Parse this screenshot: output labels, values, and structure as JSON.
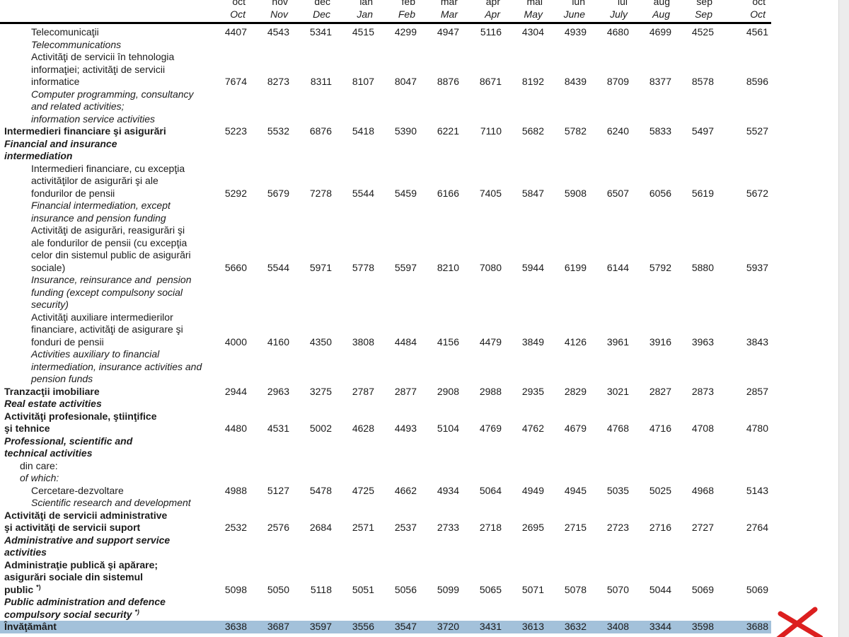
{
  "colors": {
    "highlight": "#a3c1da",
    "red_x": "#dc1f1f",
    "scroll_track": "#ececec",
    "scroll_border": "#d8d8d8"
  },
  "annotations": {
    "red_x": {
      "description": "hand-drawn red X mark over last value of highlighted row"
    }
  },
  "table": {
    "header": {
      "months_ro": [
        "oct",
        "nov",
        "dec",
        "ian",
        "feb",
        "mar",
        "apr",
        "mai",
        "iun",
        "iul",
        "aug",
        "sep",
        "oct"
      ],
      "months_en": [
        "Oct",
        "Nov",
        "Dec",
        "Jan",
        "Feb",
        "Mar",
        "Apr",
        "May",
        "June",
        "July",
        "Aug",
        "Sep",
        "Oct"
      ]
    },
    "rows": [
      {
        "name": "telecomunicatii",
        "indent": 1,
        "value_line": 0,
        "label_lines": [
          {
            "text": "Telecomunicaţii",
            "style": "normal"
          },
          {
            "text": "Telecommunications",
            "style": "italic"
          }
        ],
        "values": [
          4407,
          4543,
          5341,
          4515,
          4299,
          4947,
          5116,
          4304,
          4939,
          4680,
          4699,
          4525,
          4561
        ]
      },
      {
        "name": "it-services",
        "indent": 1,
        "value_line": 2,
        "label_lines": [
          {
            "text": "Activităţi de servicii în tehnologia",
            "style": "normal"
          },
          {
            "text": "informaţiei; activităţi de servicii",
            "style": "normal"
          },
          {
            "text": "informatice",
            "style": "normal"
          },
          {
            "text": "Computer programming, consultancy",
            "style": "italic"
          },
          {
            "text": "and related activities;",
            "style": "italic"
          },
          {
            "text": "information service activities",
            "style": "italic"
          }
        ],
        "values": [
          7674,
          8273,
          8311,
          8107,
          8047,
          8876,
          8671,
          8192,
          8439,
          8709,
          8377,
          8578,
          8596
        ]
      },
      {
        "name": "financial-insurance",
        "indent": 0,
        "value_line": 0,
        "label_lines": [
          {
            "text": "Intermedieri financiare şi asigurări",
            "style": "bold"
          },
          {
            "text": "Financial and insurance",
            "style": "bolditalic"
          },
          {
            "text": "intermediation",
            "style": "bolditalic"
          }
        ],
        "values": [
          5223,
          5532,
          6876,
          5418,
          5390,
          6221,
          7110,
          5682,
          5782,
          6240,
          5833,
          5497,
          5527
        ]
      },
      {
        "name": "financial-intermediation",
        "indent": 1,
        "value_line": 2,
        "label_lines": [
          {
            "text": "Intermedieri financiare, cu excepţia",
            "style": "normal"
          },
          {
            "text": "activităţilor de asigurări şi ale",
            "style": "normal"
          },
          {
            "text": "fondurilor de pensii",
            "style": "normal"
          },
          {
            "text": "Financial intermediation, except",
            "style": "italic"
          },
          {
            "text": "insurance and pension funding",
            "style": "italic"
          }
        ],
        "values": [
          5292,
          5679,
          7278,
          5544,
          5459,
          6166,
          7405,
          5847,
          5908,
          6507,
          6056,
          5619,
          5672
        ]
      },
      {
        "name": "insurance-reinsurance",
        "indent": 1,
        "value_line": 3,
        "label_lines": [
          {
            "text": "Activităţi de asigurări, reasigurări şi",
            "style": "normal"
          },
          {
            "text": "ale fondurilor de pensii (cu excepţia",
            "style": "normal"
          },
          {
            "text": "celor din sistemul public de asigurări",
            "style": "normal"
          },
          {
            "text": "sociale)",
            "style": "normal"
          },
          {
            "text": "Insurance, reinsurance and  pension",
            "style": "italic"
          },
          {
            "text": "funding (except compulsony social",
            "style": "italic"
          },
          {
            "text": "security)",
            "style": "italic"
          }
        ],
        "values": [
          5660,
          5544,
          5971,
          5778,
          5597,
          8210,
          7080,
          5944,
          6199,
          6144,
          5792,
          5880,
          5937
        ]
      },
      {
        "name": "auxiliary-financial",
        "indent": 1,
        "value_line": 2,
        "label_lines": [
          {
            "text": "Activităţi auxiliare intermedierilor",
            "style": "normal"
          },
          {
            "text": "financiare, activităţi de asigurare şi",
            "style": "normal"
          },
          {
            "text": "fonduri de pensii",
            "style": "normal"
          },
          {
            "text": "Activities auxiliary to financial",
            "style": "italic"
          },
          {
            "text": "intermediation, insurance activities and",
            "style": "italic"
          },
          {
            "text": "pension funds",
            "style": "italic"
          }
        ],
        "values": [
          4000,
          4160,
          4350,
          3808,
          4484,
          4156,
          4479,
          3849,
          4126,
          3961,
          3916,
          3963,
          3843
        ]
      },
      {
        "name": "real-estate",
        "indent": 0,
        "value_line": 0,
        "label_lines": [
          {
            "text": "Tranzacţii imobiliare",
            "style": "bold"
          },
          {
            "text": "Real estate activities",
            "style": "bolditalic"
          }
        ],
        "values": [
          2944,
          2963,
          3275,
          2787,
          2877,
          2908,
          2988,
          2935,
          2829,
          3021,
          2827,
          2873,
          2857
        ]
      },
      {
        "name": "professional-scientific",
        "indent": 0,
        "value_line": 1,
        "label_lines": [
          {
            "text": "Activităţi profesionale, ştiinţifice",
            "style": "bold"
          },
          {
            "text": "şi tehnice",
            "style": "bold"
          },
          {
            "text": "Professional, scientific and",
            "style": "bolditalic"
          },
          {
            "text": "technical activities",
            "style": "bolditalic"
          }
        ],
        "values": [
          4480,
          4531,
          5002,
          4628,
          4493,
          5104,
          4769,
          4762,
          4679,
          4768,
          4716,
          4708,
          4780
        ]
      },
      {
        "name": "of-which",
        "indent": 2,
        "value_line": 0,
        "label_lines": [
          {
            "text": "din care:",
            "style": "normal"
          },
          {
            "text": "of which:",
            "style": "italic"
          }
        ],
        "values": []
      },
      {
        "name": "research-development",
        "indent": 1,
        "value_line": 0,
        "label_lines": [
          {
            "text": "Cercetare-dezvoltare",
            "style": "normal"
          },
          {
            "text": "Scientific research and development",
            "style": "italic"
          }
        ],
        "values": [
          4988,
          5127,
          5478,
          4725,
          4662,
          4934,
          5064,
          4949,
          4945,
          5035,
          5025,
          4968,
          5143
        ]
      },
      {
        "name": "administrative-support",
        "indent": 0,
        "value_line": 1,
        "label_lines": [
          {
            "text": "Activităţi de servicii administrative",
            "style": "bold"
          },
          {
            "text": "şi activităţi de servicii suport",
            "style": "bold"
          },
          {
            "text": "Administrative and support service",
            "style": "bolditalic"
          },
          {
            "text": "activities",
            "style": "bolditalic"
          }
        ],
        "values": [
          2532,
          2576,
          2684,
          2571,
          2537,
          2733,
          2718,
          2695,
          2715,
          2723,
          2716,
          2727,
          2764
        ]
      },
      {
        "name": "public-administration",
        "indent": 0,
        "value_line": 2,
        "label_lines": [
          {
            "text": "Administraţie publică şi apărare;",
            "style": "bold"
          },
          {
            "text": "asigurări sociale din sistemul",
            "style": "bold"
          },
          {
            "text": "public ",
            "style": "bold",
            "sup": "*)"
          },
          {
            "text": "Public administration and defence",
            "style": "bolditalic"
          },
          {
            "text": "compulsory social security ",
            "style": "bolditalic",
            "sup": "*)"
          }
        ],
        "values": [
          5098,
          5050,
          5118,
          5051,
          5056,
          5099,
          5065,
          5071,
          5078,
          5070,
          5044,
          5069,
          5069
        ]
      },
      {
        "name": "invatamant",
        "indent": 0,
        "value_line": 0,
        "highlighted": true,
        "label_lines": [
          {
            "text": "Învăţământ",
            "style": "bold"
          }
        ],
        "values": [
          3638,
          3687,
          3597,
          3556,
          3547,
          3720,
          3431,
          3613,
          3632,
          3408,
          3344,
          3598,
          3688
        ]
      }
    ]
  }
}
